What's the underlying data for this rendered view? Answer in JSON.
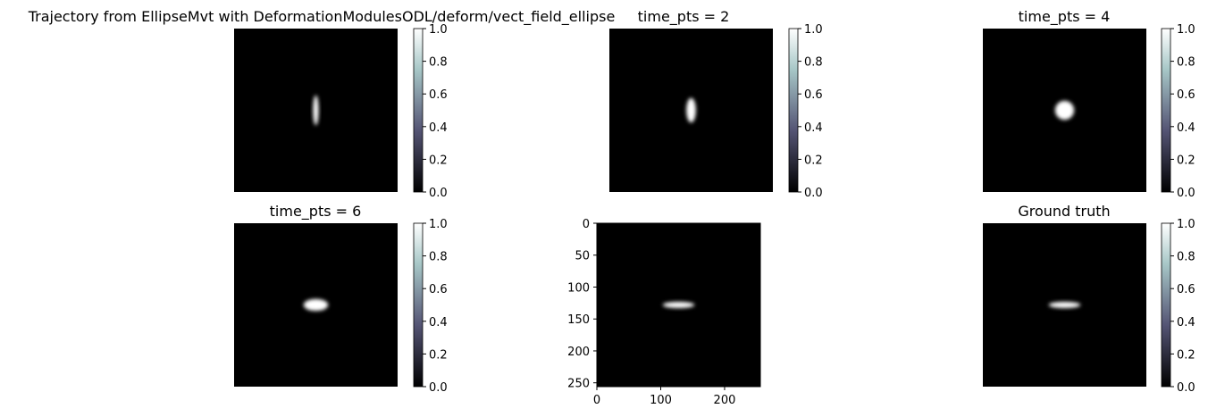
{
  "figure": {
    "background": "#ffffff"
  },
  "chart_data": [
    {
      "type": "heatmap",
      "title": "Trajectory from EllipseMvt with DeformationModulesODL/deform/vect_field_ellipse",
      "shape": "ellipse",
      "ellipse": {
        "cx": 128,
        "cy": 128,
        "rx": 7,
        "ry": 38
      },
      "axes_visible": false,
      "extent": [
        0,
        256
      ],
      "colorbar": {
        "ticks": [
          "0.0",
          "0.2",
          "0.4",
          "0.6",
          "0.8",
          "1.0"
        ],
        "range": [
          0,
          1
        ],
        "colormap": "bone"
      }
    },
    {
      "type": "heatmap",
      "title": "time_pts = 2",
      "shape": "ellipse",
      "ellipse": {
        "cx": 128,
        "cy": 128,
        "rx": 12,
        "ry": 31
      },
      "axes_visible": false,
      "extent": [
        0,
        256
      ],
      "colorbar": {
        "ticks": [
          "0.0",
          "0.2",
          "0.4",
          "0.6",
          "0.8",
          "1.0"
        ],
        "range": [
          0,
          1
        ],
        "colormap": "bone"
      }
    },
    {
      "type": "heatmap",
      "title": "time_pts = 4",
      "shape": "ellipse",
      "ellipse": {
        "cx": 128,
        "cy": 128,
        "rx": 24,
        "ry": 24
      },
      "axes_visible": false,
      "extent": [
        0,
        256
      ],
      "colorbar": {
        "ticks": [
          "0.0",
          "0.2",
          "0.4",
          "0.6",
          "0.8",
          "1.0"
        ],
        "range": [
          0,
          1
        ],
        "colormap": "bone"
      }
    },
    {
      "type": "heatmap",
      "title": "time_pts = 6",
      "shape": "ellipse",
      "ellipse": {
        "cx": 128,
        "cy": 128,
        "rx": 31,
        "ry": 15
      },
      "axes_visible": false,
      "extent": [
        0,
        256
      ],
      "colorbar": {
        "ticks": [
          "0.0",
          "0.2",
          "0.4",
          "0.6",
          "0.8",
          "1.0"
        ],
        "range": [
          0,
          1
        ],
        "colormap": "bone"
      }
    },
    {
      "type": "heatmap",
      "title": "",
      "shape": "ellipse",
      "ellipse": {
        "cx": 128,
        "cy": 128,
        "rx": 40,
        "ry": 8
      },
      "axes_visible": true,
      "extent": [
        0,
        256
      ],
      "xticks": [
        0,
        100,
        200
      ],
      "yticks": [
        0,
        50,
        100,
        150,
        200,
        250
      ],
      "xtick_labels": [
        "0",
        "100",
        "200"
      ],
      "ytick_labels": [
        "0",
        "50",
        "100",
        "150",
        "200",
        "250"
      ]
    },
    {
      "type": "heatmap",
      "title": "Ground truth",
      "shape": "ellipse",
      "ellipse": {
        "cx": 128,
        "cy": 128,
        "rx": 40,
        "ry": 8
      },
      "axes_visible": false,
      "extent": [
        0,
        256
      ],
      "colorbar": {
        "ticks": [
          "0.0",
          "0.2",
          "0.4",
          "0.6",
          "0.8",
          "1.0"
        ],
        "range": [
          0,
          1
        ],
        "colormap": "bone"
      }
    }
  ]
}
